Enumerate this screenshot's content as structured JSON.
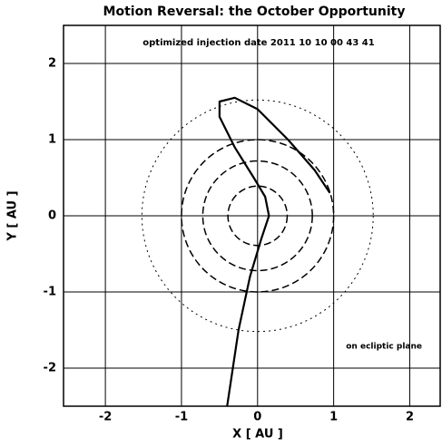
{
  "chart_data": {
    "type": "line",
    "title": "Motion Reversal: the October Opportunity",
    "annotations": [
      "optimized injection date  2011 10 10  00 43 41",
      "on ecliptic plane"
    ],
    "xlabel": "X [ AU ]",
    "ylabel": "Y [ AU ]",
    "xlim": [
      -2.55,
      2.4
    ],
    "ylim": [
      -2.5,
      2.5
    ],
    "xticks": [
      -2,
      -1,
      0,
      1,
      2
    ],
    "yticks": [
      -2,
      -1,
      0,
      1,
      2
    ],
    "grid": true,
    "orbit_radii": [
      0.39,
      0.72,
      1.0,
      1.52
    ],
    "series": [
      {
        "color": "#000000",
        "x": [
          -0.4,
          -0.25,
          -0.1,
          0.05,
          0.15,
          0.1,
          -0.05,
          -0.3,
          -0.5,
          -0.5,
          -0.3,
          0.0,
          0.4,
          0.75,
          0.95
        ],
        "y": [
          -2.5,
          -1.5,
          -0.8,
          -0.3,
          0.0,
          0.25,
          0.5,
          0.9,
          1.3,
          1.5,
          1.55,
          1.4,
          1.0,
          0.6,
          0.3
        ]
      }
    ]
  }
}
